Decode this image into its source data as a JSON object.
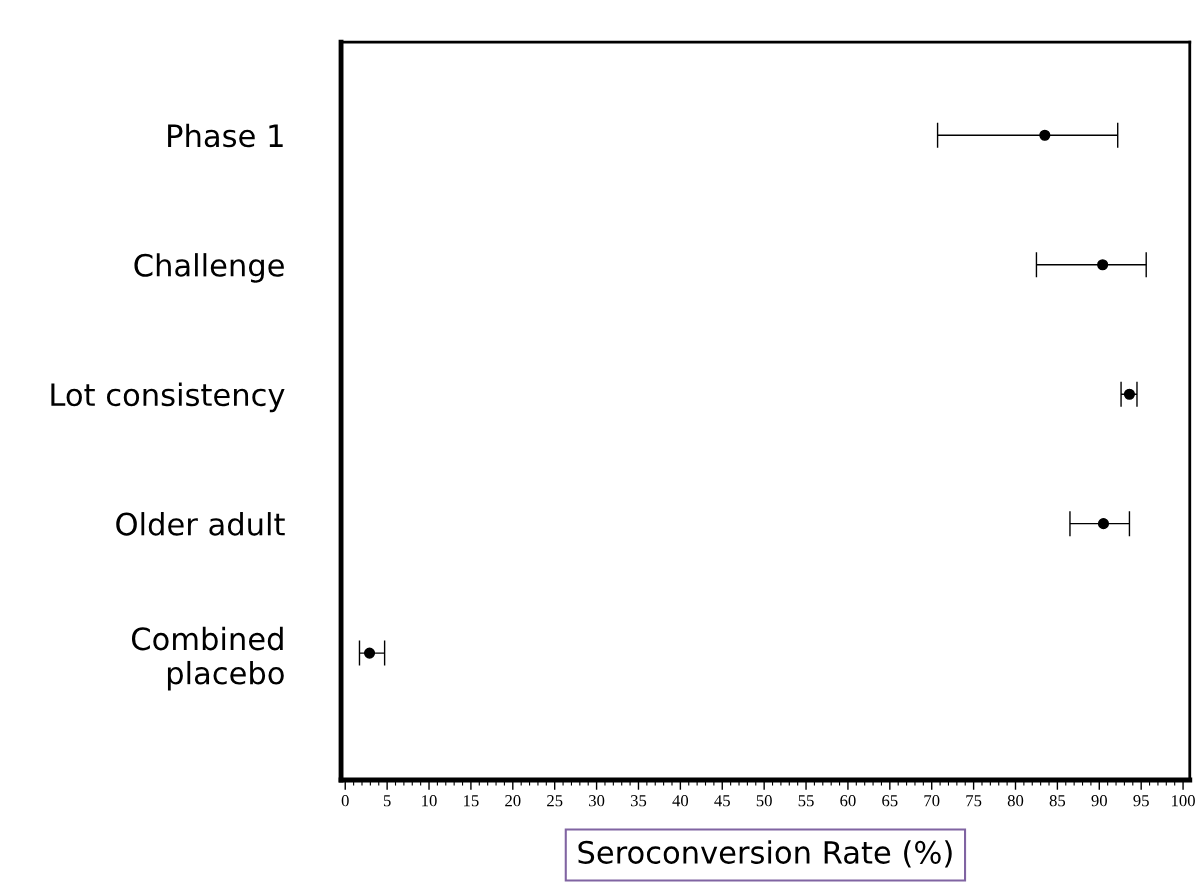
{
  "chart_data": {
    "type": "scatter",
    "orientation": "horizontal",
    "xlabel": "Seroconversion Rate (%)",
    "categories": [
      "Phase 1",
      "Challenge",
      "Lot consistency",
      "Older adult",
      "Combined\nplacebo"
    ],
    "series": [
      {
        "color": "#000000",
        "values": [
          83.5,
          90.4,
          93.6,
          90.5,
          2.9
        ],
        "errors": [
          [
            70.7,
            92.2
          ],
          [
            82.5,
            95.6
          ],
          [
            92.6,
            94.5
          ],
          [
            86.5,
            93.6
          ],
          [
            1.7,
            4.7
          ]
        ]
      }
    ],
    "xlim": [
      -0.5,
      100.8
    ],
    "xticks": [
      0,
      5,
      10,
      15,
      20,
      25,
      30,
      35,
      40,
      45,
      50,
      55,
      60,
      65,
      70,
      75,
      80,
      85,
      90,
      95,
      100
    ],
    "marker": "circle",
    "grid": false,
    "legend": false
  }
}
